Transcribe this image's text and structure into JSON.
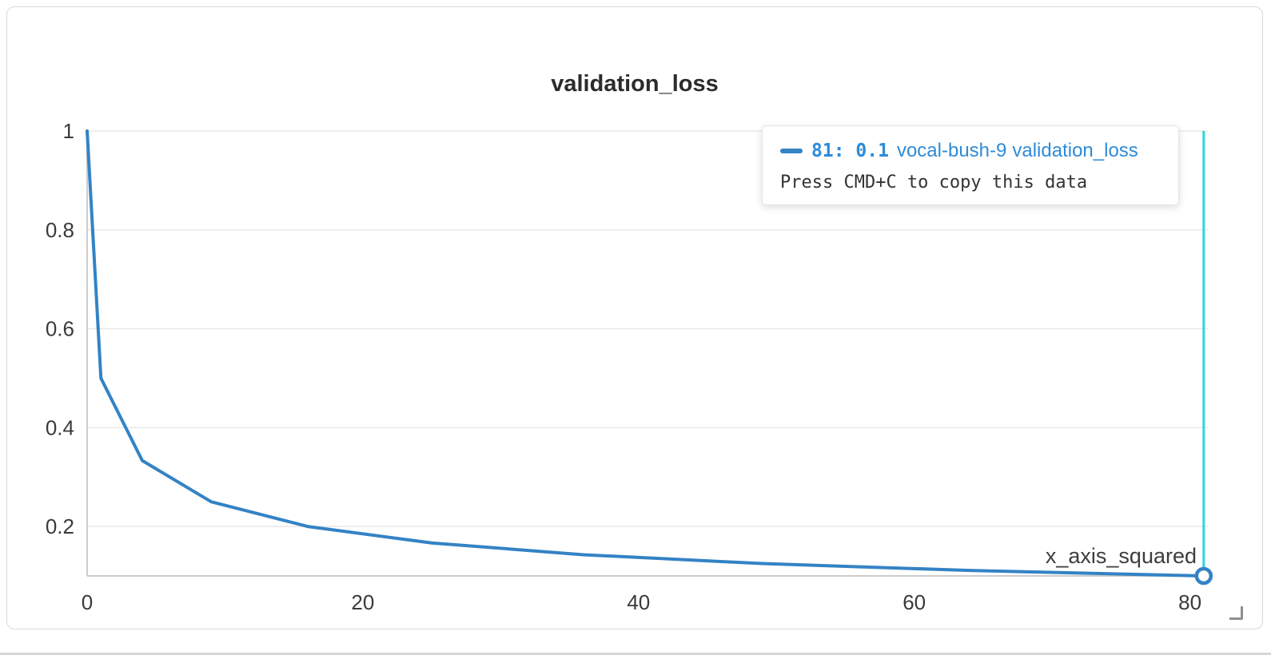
{
  "panel": {
    "title": "validation_loss"
  },
  "tooltip": {
    "x_value": "81",
    "separator": ": ",
    "y_value": "0.1",
    "run_name": "vocal-bush-9",
    "metric": "validation_loss",
    "hint": "Press CMD+C to copy this data",
    "accent": "#2e8bd8"
  },
  "chart_data": {
    "type": "line",
    "title": "validation_loss",
    "xlabel": "x_axis_squared",
    "ylabel": "",
    "series": [
      {
        "name": "vocal-bush-9 validation_loss",
        "x": [
          0,
          1,
          4,
          9,
          16,
          25,
          36,
          49,
          64,
          81
        ],
        "y": [
          1,
          0.5,
          0.3333,
          0.25,
          0.2,
          0.1667,
          0.1429,
          0.125,
          0.1111,
          0.1
        ]
      }
    ],
    "xlim": [
      0,
      81.3
    ],
    "ylim": [
      0.1,
      1.0
    ],
    "xticks": [
      0,
      20,
      40,
      60,
      80
    ],
    "xtick_labels": [
      "0",
      "20",
      "40",
      "60",
      "80"
    ],
    "yticks": [
      0.2,
      0.4,
      0.6,
      0.8,
      1
    ],
    "ytick_labels": [
      "0.2",
      "0.4",
      "0.6",
      "0.8",
      "1"
    ],
    "grid": "horizontal-only",
    "legend_position": "tooltip",
    "hover": {
      "x": 81,
      "y": 0.1
    },
    "colors": {
      "line": "#3383c5",
      "crosshair": "#2ed3e4",
      "grid": "#e8e8e8",
      "axis": "#cccccc",
      "tick_text": "#3a3a3a",
      "xlabel_text": "#3d3d3d"
    }
  }
}
